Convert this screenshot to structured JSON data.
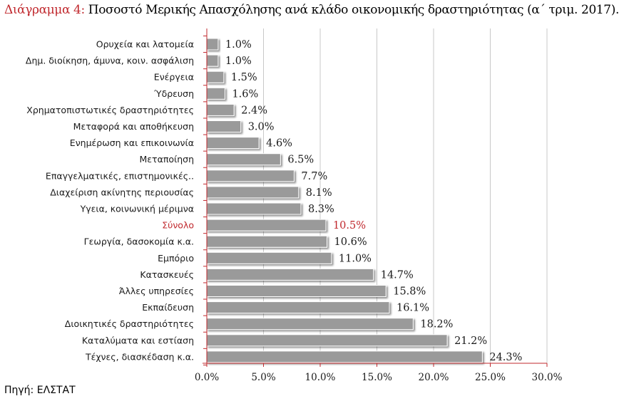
{
  "title": {
    "prefix": "Διάγραμμα 4:",
    "text": "Ποσοστό Μερικής Απασχόλησης ανά κλάδο οικονομικής δραστηριότητας (α΄ τριμ. 2017)."
  },
  "source": "Πηγή: ΕΛΣΤΑΤ",
  "colors": {
    "bar": "#9a9a9a",
    "highlight": "#c0282d",
    "grid": "#c8c8c8",
    "axis": "#c0282d"
  },
  "chart_data": {
    "type": "bar",
    "orientation": "horizontal",
    "categories": [
      "Ορυχεία και λατομεία",
      "Δημ. διοίκηση, άμυνα, κοιν. ασφάλιση",
      "Ενέργεια",
      "Ύδρευση",
      "Χρηματοπιστωτικές δραστηριότητες",
      "Μεταφορά και αποθήκευση",
      "Ενημέρωση και επικοινωνία",
      "Μεταποίηση",
      "Επαγγελματικές, επιστημονικές..",
      "Διαχείριση ακίνητης περιουσίας",
      "Υγεια, κοινωνική μέριμνα",
      "Σύνολο",
      "Γεωργία, δασοκομία κ.α.",
      "Εμπόριο",
      "Κατασκευές",
      "Άλλες υπηρεσίες",
      "Εκπαίδευση",
      "Διοικητικές δραστηριότητες",
      "Καταλύματα και εστίαση",
      "Τέχνες, διασκέδαση κ.α."
    ],
    "values": [
      1.0,
      1.0,
      1.5,
      1.6,
      2.4,
      3.0,
      4.6,
      6.5,
      7.7,
      8.1,
      8.3,
      10.5,
      10.6,
      11.0,
      14.7,
      15.8,
      16.1,
      18.2,
      21.2,
      24.3
    ],
    "value_labels": [
      "1.0%",
      "1.0%",
      "1.5%",
      "1.6%",
      "2.4%",
      "3.0%",
      "4.6%",
      "6.5%",
      "7.7%",
      "8.1%",
      "8.3%",
      "10.5%",
      "10.6%",
      "11.0%",
      "14.7%",
      "15.8%",
      "16.1%",
      "18.2%",
      "21.2%",
      "24.3%"
    ],
    "highlight_category": "Σύνολο",
    "xlim": [
      0,
      30
    ],
    "xticks": [
      0,
      5,
      10,
      15,
      20,
      25,
      30
    ],
    "xtick_labels": [
      "0.0%",
      "5.0%",
      "10.0%",
      "15.0%",
      "20.0%",
      "25.0%",
      "30.0%"
    ],
    "grid": true,
    "xlabel": "",
    "ylabel": ""
  }
}
